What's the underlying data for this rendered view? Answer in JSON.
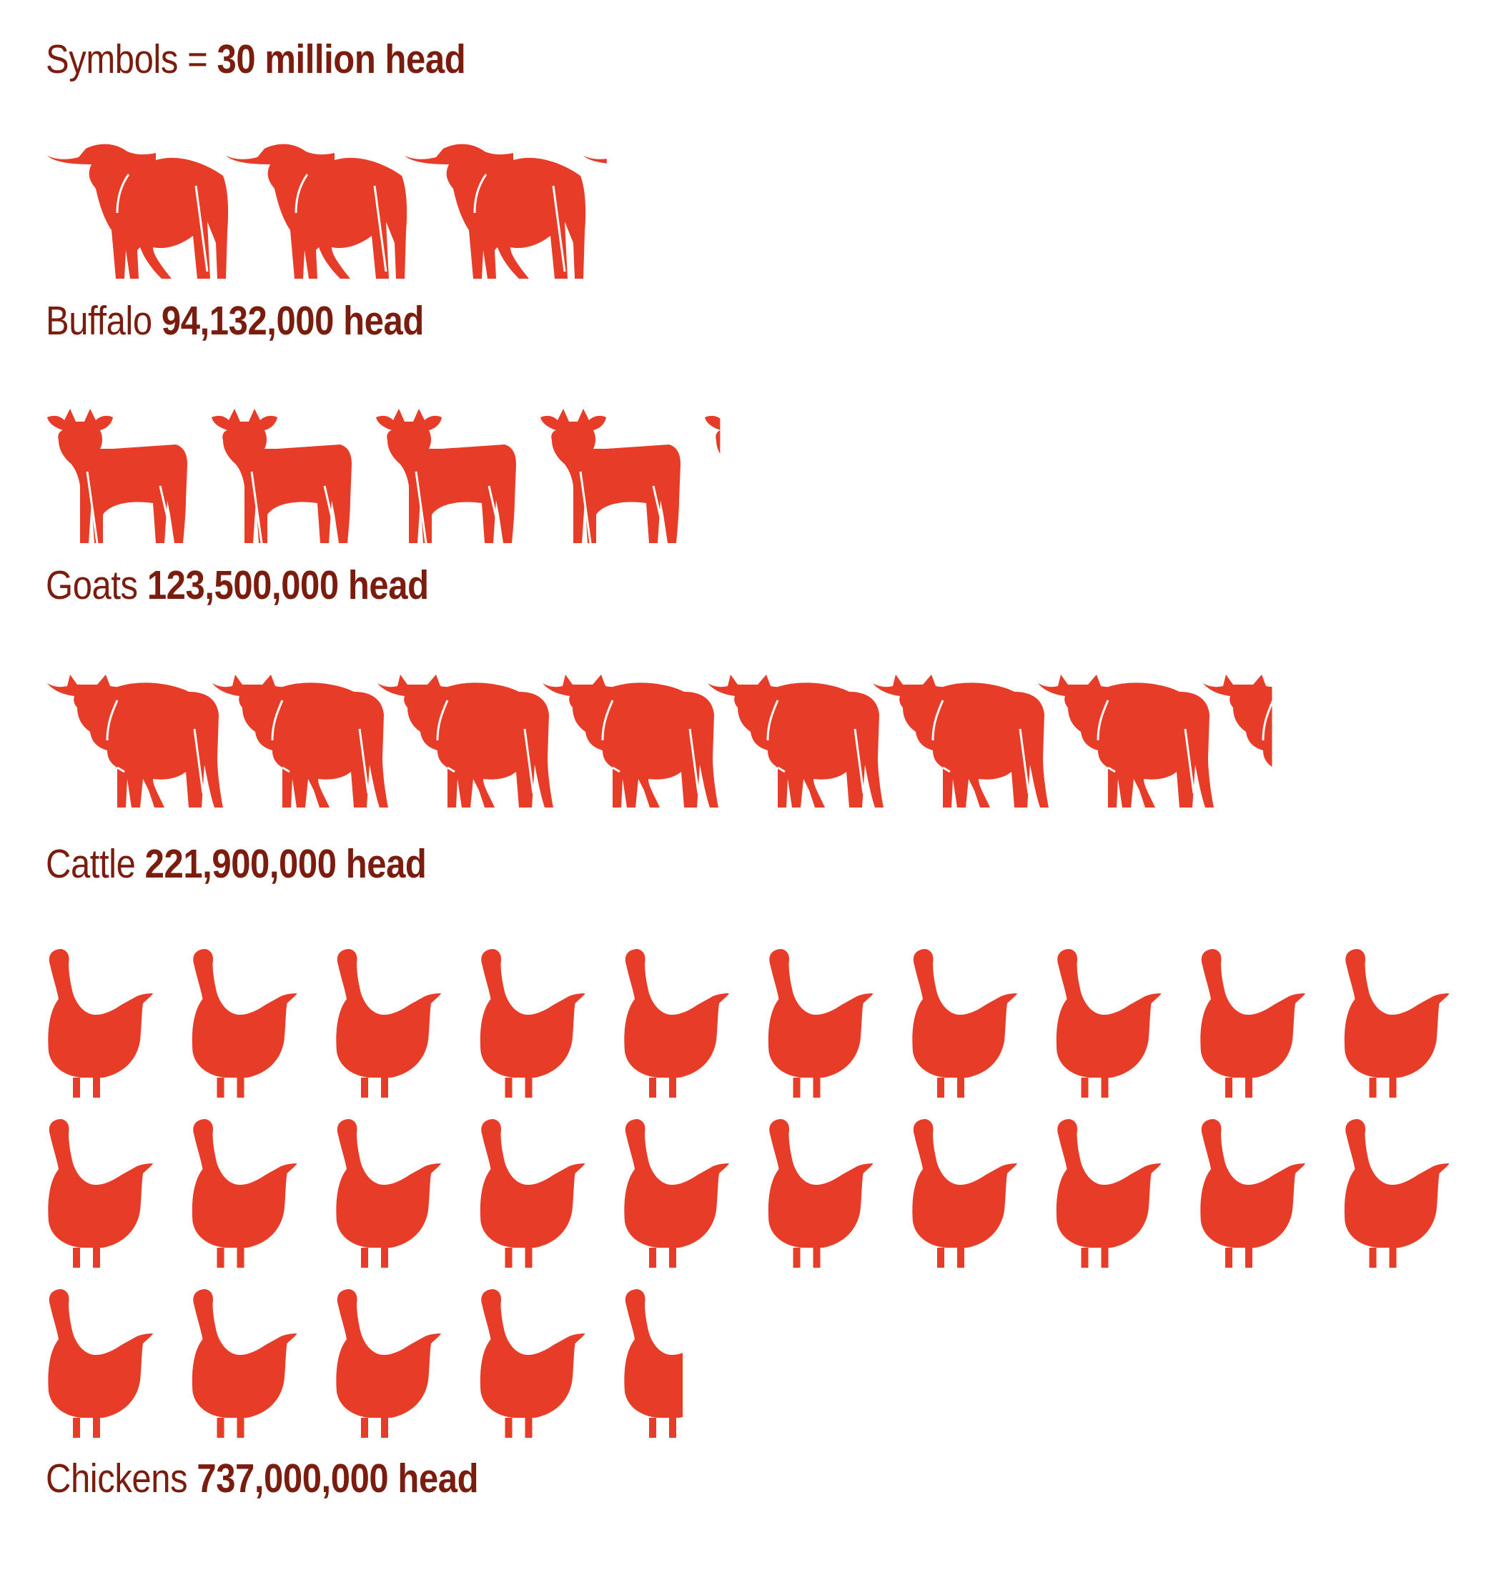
{
  "header": {
    "prefix": "Symbols = ",
    "value": "30 million head"
  },
  "chart_data": {
    "type": "pictogram",
    "unit_per_symbol": 30000000,
    "unit_label": "head",
    "categories": [
      "Buffalo",
      "Goats",
      "Cattle",
      "Chickens"
    ],
    "values": [
      94132000,
      123500000,
      221900000,
      737000000
    ],
    "value_labels": [
      "94,132,000 head",
      "123,500,000 head",
      "221,900,000 head",
      "737,000,000 head"
    ],
    "symbol_icons": [
      "buffalo-icon",
      "goat-icon",
      "cow-icon",
      "chicken-icon"
    ],
    "symbol_color": "#e63c28",
    "text_color": "#7a1c0e"
  }
}
